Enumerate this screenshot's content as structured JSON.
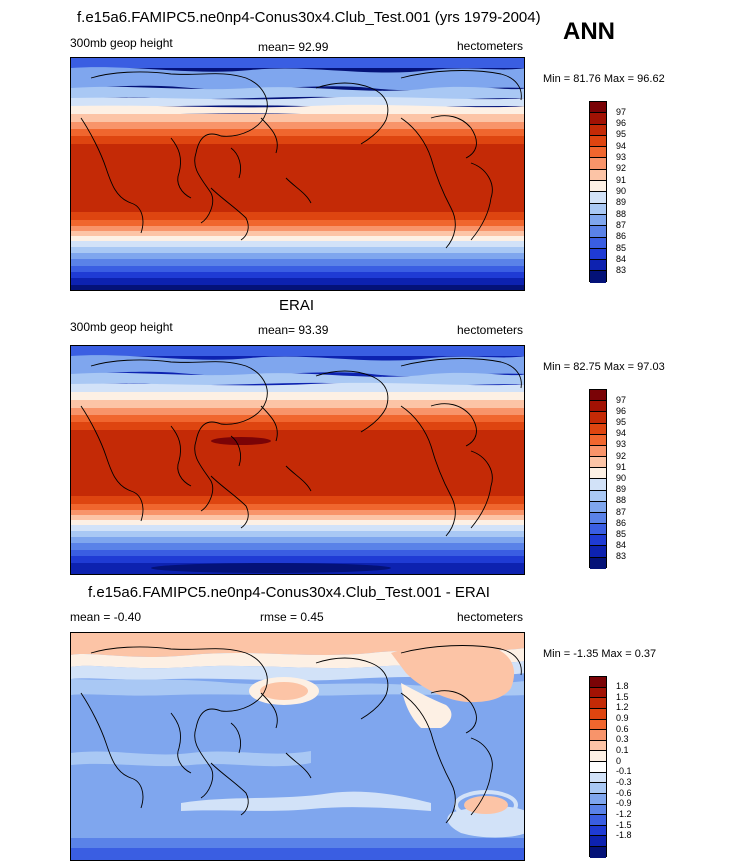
{
  "panels": [
    {
      "title": "f.e15a6.FAMIPC5.ne0np4-Conus30x4.Club_Test.001 (yrs 1979-2004)",
      "left_label": "300mb geop height",
      "center_label": "mean=  92.99",
      "right_label": "hectometers",
      "minmax": "Min =  81.76 Max =  96.62",
      "colorbar": {
        "labels": [
          "97",
          "96",
          "95",
          "94",
          "93",
          "92",
          "91",
          "90",
          "89",
          "88",
          "87",
          "86",
          "85",
          "84",
          "83"
        ],
        "colors": [
          "#7a0306",
          "#a21204",
          "#c42a06",
          "#de4510",
          "#f0662e",
          "#f8946a",
          "#fcc4a6",
          "#fdf0e4",
          "#d2e2f8",
          "#a9c8f4",
          "#7fa6ee",
          "#5a82e8",
          "#3a5ee2",
          "#1f3bd4",
          "#0d22b0",
          "#041278"
        ]
      }
    },
    {
      "title": "ERAI",
      "left_label": "300mb geop height",
      "center_label": "mean=  93.39",
      "right_label": "hectometers",
      "minmax": "Min =  82.75 Max =  97.03",
      "colorbar": {
        "labels": [
          "97",
          "96",
          "95",
          "94",
          "93",
          "92",
          "91",
          "90",
          "89",
          "88",
          "87",
          "86",
          "85",
          "84",
          "83"
        ],
        "colors": [
          "#7a0306",
          "#a21204",
          "#c42a06",
          "#de4510",
          "#f0662e",
          "#f8946a",
          "#fcc4a6",
          "#fdf0e4",
          "#d2e2f8",
          "#a9c8f4",
          "#7fa6ee",
          "#5a82e8",
          "#3a5ee2",
          "#1f3bd4",
          "#0d22b0",
          "#041278"
        ]
      }
    },
    {
      "title": "f.e15a6.FAMIPC5.ne0np4-Conus30x4.Club_Test.001 - ERAI",
      "left_label": "mean =  -0.40",
      "center_label": "rmse =   0.45",
      "right_label": "hectometers",
      "minmax": "Min =  -1.35 Max =   0.37",
      "colorbar": {
        "labels": [
          "1.8",
          "1.5",
          "1.2",
          "0.9",
          "0.6",
          "0.3",
          "0.1",
          "0",
          "-0.1",
          "-0.3",
          "-0.6",
          "-0.9",
          "-1.2",
          "-1.5",
          "-1.8"
        ],
        "colors": [
          "#7a0306",
          "#a21204",
          "#c42a06",
          "#de4510",
          "#f0662e",
          "#f8946a",
          "#fcc4a6",
          "#fdf0e4",
          "#ffffff",
          "#d2e2f8",
          "#a9c8f4",
          "#7fa6ee",
          "#5a82e8",
          "#3a5ee2",
          "#1f3bd4",
          "#0d22b0",
          "#041278"
        ]
      }
    }
  ],
  "season": "ANN",
  "map_legend_colors": {
    "dark_red": "#a21204",
    "red": "#c42a06",
    "orange": "#f0662e",
    "pale": "#fdf0e4",
    "light_blue": "#a9c8f4",
    "blue": "#5a82e8",
    "dark_blue": "#0d22b0"
  }
}
